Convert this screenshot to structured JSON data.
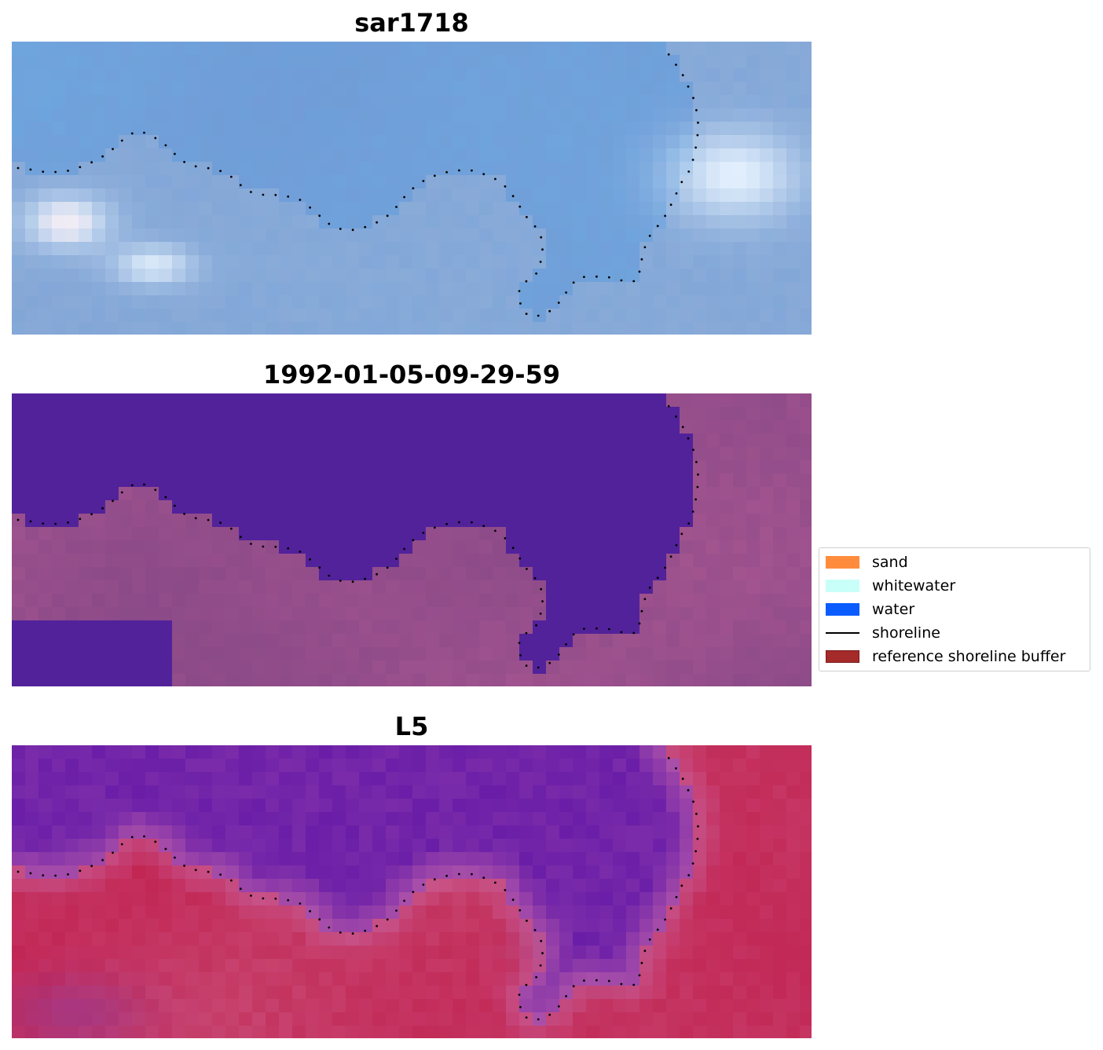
{
  "panels": [
    {
      "title": "sar1718",
      "style": "sar"
    },
    {
      "title": "1992-01-05-09-29-59",
      "style": "class"
    },
    {
      "title": "L5",
      "style": "l5"
    }
  ],
  "legend": [
    {
      "label": "sand",
      "color": "#ff8c3c",
      "kind": "patch"
    },
    {
      "label": "whitewater",
      "color": "#c8fff8",
      "kind": "patch"
    },
    {
      "label": "water",
      "color": "#0a5cff",
      "kind": "patch"
    },
    {
      "label": "shoreline",
      "color": "#000000",
      "kind": "line"
    },
    {
      "label": "reference shoreline buffer",
      "color": "#a52a2a",
      "kind": "patch"
    }
  ],
  "colors": {
    "sar_water": "#6f9ed8",
    "sar_bright": "#e8f4ff",
    "class_water": "#52229a",
    "class_land": "#8a4a88",
    "l5_water": "#6a1ea8",
    "l5_land": "#c42a5a"
  }
}
